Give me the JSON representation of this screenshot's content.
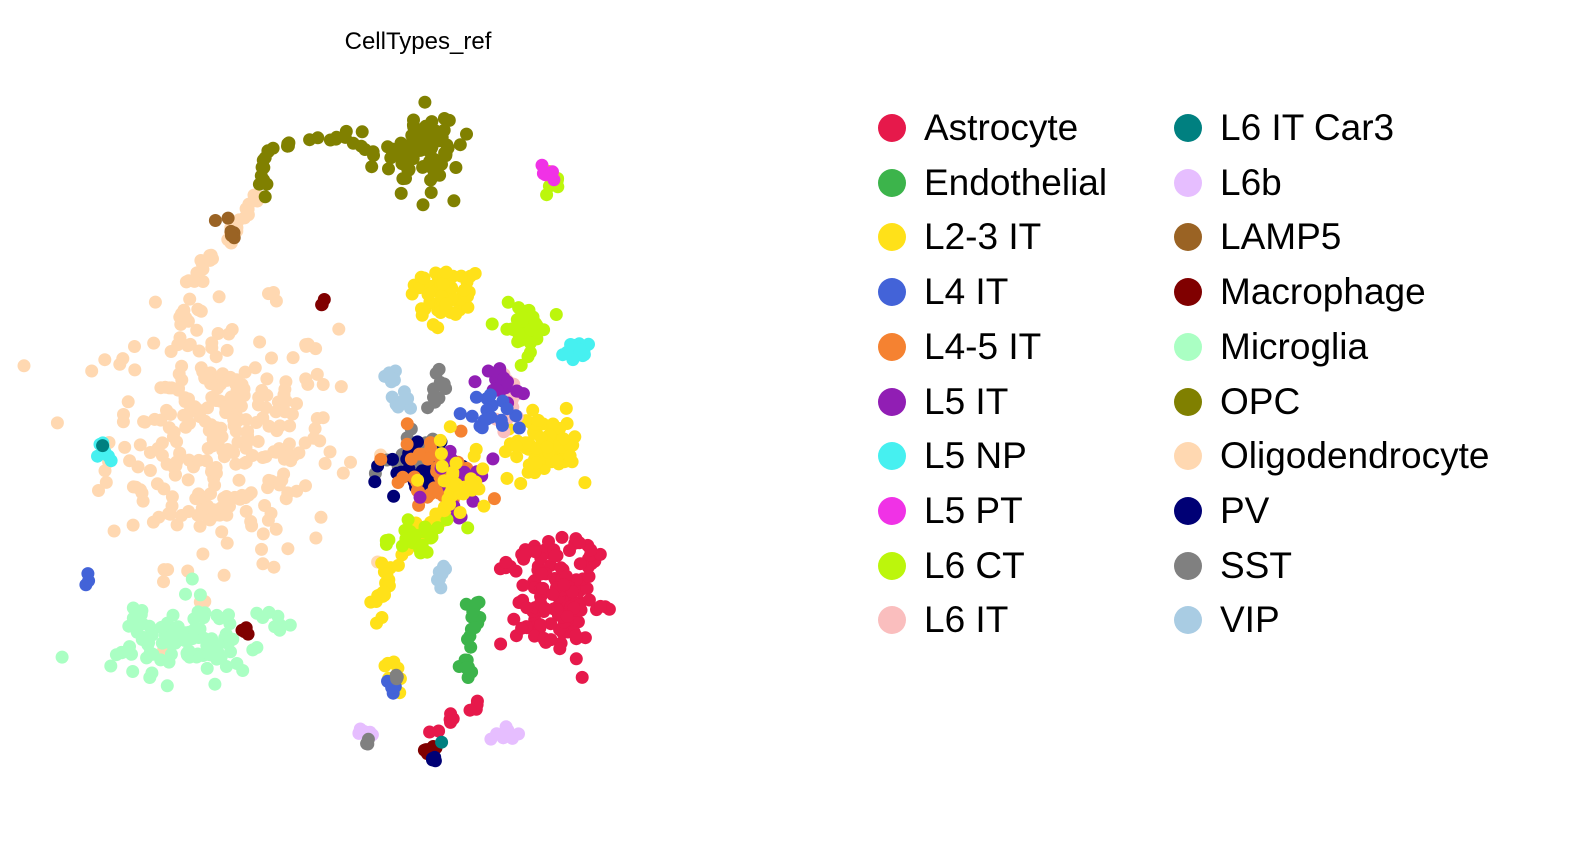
{
  "chart_data": {
    "type": "scatter",
    "title": "CellTypes_ref",
    "xlabel": "",
    "ylabel": "",
    "grid": false,
    "axes_visible": false,
    "legend_placement": "right",
    "legend": [
      {
        "name": "Astrocyte",
        "color": "#e6194b"
      },
      {
        "name": "Endothelial",
        "color": "#3cb44b"
      },
      {
        "name": "L2-3 IT",
        "color": "#ffe119"
      },
      {
        "name": "L4 IT",
        "color": "#4363d8"
      },
      {
        "name": "L4-5 IT",
        "color": "#f58231"
      },
      {
        "name": "L5 IT",
        "color": "#911eb4"
      },
      {
        "name": "L5 NP",
        "color": "#46f0f0"
      },
      {
        "name": "L5 PT",
        "color": "#f032e6"
      },
      {
        "name": "L6 CT",
        "color": "#bcf60c"
      },
      {
        "name": "L6 IT",
        "color": "#fabebe"
      },
      {
        "name": "L6 IT Car3",
        "color": "#008080"
      },
      {
        "name": "L6b",
        "color": "#e6beff"
      },
      {
        "name": "LAMP5",
        "color": "#9a6324"
      },
      {
        "name": "Macrophage",
        "color": "#800000"
      },
      {
        "name": "Microglia",
        "color": "#aaffc3"
      },
      {
        "name": "OPC",
        "color": "#808000"
      },
      {
        "name": "Oligodendrocyte",
        "color": "#ffd8b1"
      },
      {
        "name": "PV",
        "color": "#000075"
      },
      {
        "name": "SST",
        "color": "#808080"
      },
      {
        "name": "VIP",
        "color": "#a9cce3"
      }
    ],
    "x_range": [
      0,
      100
    ],
    "y_range": [
      0,
      100
    ],
    "clusters": [
      {
        "label": "Oligodendrocyte",
        "kind": "blob",
        "center": [
          24,
          49
        ],
        "spread": [
          15,
          16
        ],
        "n": 300
      },
      {
        "label": "Oligodendrocyte",
        "kind": "path",
        "points": [
          [
            19,
            60
          ],
          [
            20,
            70
          ],
          [
            25,
            75
          ],
          [
            29,
            80
          ]
        ],
        "n": 40
      },
      {
        "label": "OPC",
        "kind": "path",
        "points": [
          [
            29,
            80
          ],
          [
            30,
            86
          ],
          [
            38,
            88
          ],
          [
            44,
            86
          ]
        ],
        "n": 30
      },
      {
        "label": "OPC",
        "kind": "blob",
        "center": [
          50,
          86
        ],
        "spread": [
          5,
          5
        ],
        "n": 80
      },
      {
        "label": "Microglia",
        "kind": "blob",
        "center": [
          19,
          23
        ],
        "spread": [
          8,
          5
        ],
        "n": 100
      },
      {
        "label": "Microglia",
        "kind": "path",
        "points": [
          [
            28,
            27
          ],
          [
            32,
            25
          ]
        ],
        "n": 8
      },
      {
        "label": "Macrophage",
        "kind": "blob",
        "center": [
          27,
          24
        ],
        "spread": [
          0.8,
          1
        ],
        "n": 4
      },
      {
        "label": "Macrophage",
        "kind": "blob",
        "center": [
          37,
          66
        ],
        "spread": [
          0.5,
          1
        ],
        "n": 3
      },
      {
        "label": "LAMP5",
        "kind": "path",
        "points": [
          [
            24,
            77
          ],
          [
            25.5,
            75
          ]
        ],
        "n": 6
      },
      {
        "label": "L5 NP",
        "kind": "blob",
        "center": [
          8.5,
          47
        ],
        "spread": [
          0.9,
          2
        ],
        "n": 8
      },
      {
        "label": "L6 IT Car3",
        "kind": "blob",
        "center": [
          8.3,
          48
        ],
        "spread": [
          0.2,
          0.2
        ],
        "n": 1
      },
      {
        "label": "L4 IT",
        "kind": "path",
        "points": [
          [
            6,
            31
          ],
          [
            6.6,
            31.6
          ]
        ],
        "n": 3
      },
      {
        "label": "Astrocyte",
        "kind": "blob",
        "center": [
          68,
          28
        ],
        "spread": [
          5,
          7
        ],
        "n": 110
      },
      {
        "label": "Astrocyte",
        "kind": "path",
        "points": [
          [
            60,
            32
          ],
          [
            64,
            34
          ],
          [
            70,
            36
          ],
          [
            74,
            34
          ]
        ],
        "n": 25
      },
      {
        "label": "Astrocyte",
        "kind": "path",
        "points": [
          [
            51,
            11
          ],
          [
            55,
            13
          ],
          [
            58,
            15
          ]
        ],
        "n": 10
      },
      {
        "label": "Endothelial",
        "kind": "path",
        "points": [
          [
            56,
            19
          ],
          [
            57,
            24
          ],
          [
            57,
            28
          ]
        ],
        "n": 25
      },
      {
        "label": "L2-3 IT",
        "kind": "blob",
        "center": [
          53,
          68
        ],
        "spread": [
          4,
          4
        ],
        "n": 60
      },
      {
        "label": "L2-3 IT",
        "kind": "blob",
        "center": [
          66,
          48
        ],
        "spread": [
          5,
          4
        ],
        "n": 70
      },
      {
        "label": "L2-3 IT",
        "kind": "path",
        "points": [
          [
            44,
            26
          ],
          [
            46,
            32
          ],
          [
            50,
            37
          ],
          [
            54,
            40
          ]
        ],
        "n": 45
      },
      {
        "label": "L6 CT",
        "kind": "blob",
        "center": [
          64,
          63
        ],
        "spread": [
          3,
          3
        ],
        "n": 40
      },
      {
        "label": "L6 CT",
        "kind": "blob",
        "center": [
          67,
          82
        ],
        "spread": [
          1.3,
          1.4
        ],
        "n": 10
      },
      {
        "label": "L5 PT",
        "kind": "blob",
        "center": [
          67,
          83
        ],
        "spread": [
          1.1,
          1.2
        ],
        "n": 6
      },
      {
        "label": "L5 NP",
        "kind": "blob",
        "center": [
          71,
          60
        ],
        "spread": [
          2,
          1.4
        ],
        "n": 16
      },
      {
        "label": "L6 IT",
        "kind": "blob",
        "center": [
          62,
          54
        ],
        "spread": [
          1.4,
          3
        ],
        "n": 22
      },
      {
        "label": "L5 IT",
        "kind": "blob",
        "center": [
          61,
          56
        ],
        "spread": [
          2,
          2.5
        ],
        "n": 18
      },
      {
        "label": "VIP",
        "kind": "path",
        "points": [
          [
            46,
            58
          ],
          [
            48,
            52
          ]
        ],
        "n": 18
      },
      {
        "label": "SST",
        "kind": "path",
        "points": [
          [
            52,
            52
          ],
          [
            53,
            58
          ]
        ],
        "n": 12
      },
      {
        "label": "SST",
        "kind": "blob",
        "center": [
          50,
          46
        ],
        "spread": [
          4,
          3
        ],
        "n": 40
      },
      {
        "label": "PV",
        "kind": "blob",
        "center": [
          50,
          45
        ],
        "spread": [
          5,
          3.5
        ],
        "n": 35
      },
      {
        "label": "L4-5 IT",
        "kind": "blob",
        "center": [
          52,
          44
        ],
        "spread": [
          6,
          5
        ],
        "n": 45
      },
      {
        "label": "L4 IT",
        "kind": "blob",
        "center": [
          59,
          52
        ],
        "spread": [
          3,
          3
        ],
        "n": 18
      },
      {
        "label": "L5 IT",
        "kind": "blob",
        "center": [
          55,
          44
        ],
        "spread": [
          4,
          4
        ],
        "n": 25
      },
      {
        "label": "L6 CT",
        "kind": "blob",
        "center": [
          49,
          36
        ],
        "spread": [
          5,
          3
        ],
        "n": 25
      },
      {
        "label": "L2-3 IT",
        "kind": "blob",
        "center": [
          55,
          43
        ],
        "spread": [
          5,
          5
        ],
        "n": 40
      },
      {
        "label": "VIP",
        "kind": "blob",
        "center": [
          53,
          32
        ],
        "spread": [
          1,
          2
        ],
        "n": 8
      },
      {
        "label": "L2-3 IT",
        "kind": "path",
        "points": [
          [
            46,
            21
          ],
          [
            47,
            16
          ]
        ],
        "n": 8
      },
      {
        "label": "L4 IT",
        "kind": "blob",
        "center": [
          46,
          17
        ],
        "spread": [
          0.6,
          1
        ],
        "n": 4
      },
      {
        "label": "SST",
        "kind": "blob",
        "center": [
          47,
          18
        ],
        "spread": [
          0.5,
          0.8
        ],
        "n": 3
      },
      {
        "label": "L6b",
        "kind": "blob",
        "center": [
          61,
          11
        ],
        "spread": [
          1.5,
          1
        ],
        "n": 10
      },
      {
        "label": "L6b",
        "kind": "blob",
        "center": [
          43,
          11
        ],
        "spread": [
          1,
          0.6
        ],
        "n": 6
      },
      {
        "label": "SST",
        "kind": "blob",
        "center": [
          43,
          10
        ],
        "spread": [
          0.5,
          0.5
        ],
        "n": 3
      },
      {
        "label": "Macrophage",
        "kind": "blob",
        "center": [
          51,
          9
        ],
        "spread": [
          1.3,
          0.8
        ],
        "n": 6
      },
      {
        "label": "PV",
        "kind": "blob",
        "center": [
          52,
          8
        ],
        "spread": [
          0.6,
          0.6
        ],
        "n": 4
      },
      {
        "label": "L6 IT Car3",
        "kind": "blob",
        "center": [
          53,
          10
        ],
        "spread": [
          0.3,
          0.3
        ],
        "n": 1
      }
    ]
  }
}
